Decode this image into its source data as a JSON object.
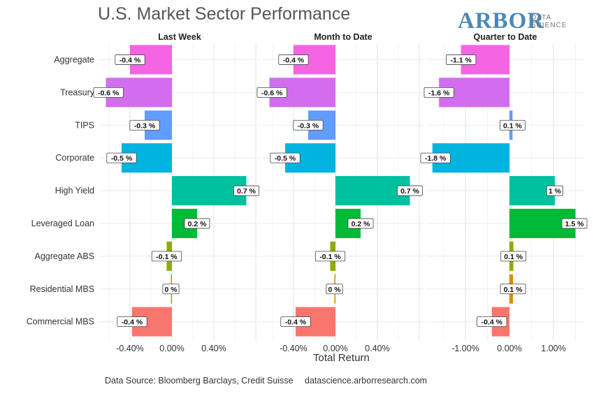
{
  "header": {
    "title": "U.S. Market Sector Performance",
    "logo_main": "ARBOR",
    "logo_sub_1": "DATA",
    "logo_sub_2": "SCIENCE"
  },
  "footer": {
    "source": "Data Source: Bloomberg Barclays, Credit Suisse",
    "url": "datascience.arborresearch.com"
  },
  "chart_data": {
    "type": "bar",
    "orientation": "horizontal",
    "title": "U.S. Market Sector Performance",
    "xlabel": "Total Return",
    "grid": true,
    "categories": [
      "Aggregate",
      "Treasury",
      "TIPS",
      "Corporate",
      "High Yield",
      "Leveraged Loan",
      "Aggregate ABS",
      "Residential MBS",
      "Commercial MBS"
    ],
    "colors": [
      "#f564e3",
      "#d46cf0",
      "#619cff",
      "#00b4e0",
      "#00c19f",
      "#00ba38",
      "#93aa00",
      "#db8e00",
      "#f8766d"
    ],
    "panels": [
      {
        "name": "Last Week",
        "values": [
          -0.4,
          -0.63,
          -0.26,
          -0.48,
          0.71,
          0.24,
          -0.05,
          -0.01,
          -0.38
        ],
        "labels": [
          "-0.4 %",
          "-0.6 %",
          "-0.3 %",
          "-0.5 %",
          "0.7 %",
          "0.2 %",
          "-0.1 %",
          "0 %",
          "-0.4 %"
        ],
        "ticks": [
          "-0.40%",
          "0.00%",
          "0.40%"
        ]
      },
      {
        "name": "Month to Date",
        "values": [
          -0.4,
          -0.63,
          -0.26,
          -0.48,
          0.71,
          0.24,
          -0.05,
          -0.01,
          -0.38
        ],
        "labels": [
          "-0.4 %",
          "-0.6 %",
          "-0.3 %",
          "-0.5 %",
          "0.7 %",
          "0.2 %",
          "-0.1 %",
          "0 %",
          "-0.4 %"
        ],
        "ticks": [
          "-0.40%",
          "0.00%",
          "0.40%"
        ]
      },
      {
        "name": "Quarter to Date",
        "values": [
          -1.1,
          -1.6,
          0.07,
          -1.75,
          1.03,
          1.5,
          0.09,
          0.08,
          -0.4
        ],
        "labels": [
          "-1.1 %",
          "-1.6 %",
          "0.1 %",
          "-1.8 %",
          "1 %",
          "1.5 %",
          "0.1 %",
          "0.1 %",
          "-0.4 %"
        ],
        "ticks": [
          "-1.00%",
          "0.00%",
          "1.00%"
        ]
      }
    ]
  }
}
